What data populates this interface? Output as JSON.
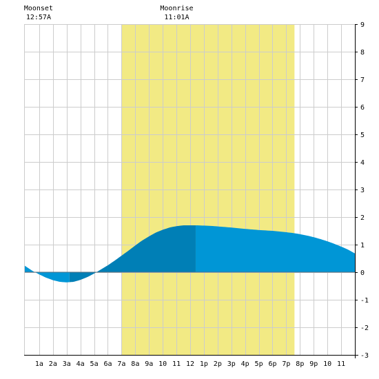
{
  "chart_data": {
    "type": "area",
    "title": "",
    "xlabel": "",
    "ylabel": "",
    "x_tick_labels": [
      "1a",
      "2a",
      "3a",
      "4a",
      "5a",
      "6a",
      "7a",
      "8a",
      "9a",
      "10",
      "11",
      "12",
      "1p",
      "2p",
      "3p",
      "4p",
      "5p",
      "6p",
      "7p",
      "8p",
      "9p",
      "10",
      "11"
    ],
    "y_tick_labels": [
      "9",
      "8",
      "7",
      "6",
      "5",
      "4",
      "3",
      "2",
      "1",
      "0",
      "-1",
      "-2",
      "-3"
    ],
    "xlim_hours": [
      -0.1,
      24.0
    ],
    "ylim": [
      -3,
      9
    ],
    "grid": true,
    "daylight_hours": [
      7.0,
      19.6
    ],
    "annotations": [
      {
        "label": "Moonset",
        "time": "12:57A",
        "hour": 0.95
      },
      {
        "label": "Moonrise",
        "time": "11:01A",
        "hour": 11.02
      }
    ],
    "tide_extremes": [
      {
        "hour": 3.2,
        "height": -0.37,
        "kind": "low"
      },
      {
        "hour": 12.4,
        "height": 1.7,
        "kind": "high"
      }
    ],
    "series": [
      {
        "x": [
          -0.1,
          0.5,
          1.0,
          1.5,
          2.0,
          2.5,
          3.0,
          3.5,
          4.0,
          4.5,
          5.0,
          5.5,
          6.0,
          6.5,
          7.0,
          7.5,
          8.0,
          8.5,
          9.0,
          9.5,
          10.0,
          10.5,
          11.0,
          11.5,
          12.0,
          12.5,
          13.0,
          13.5,
          14.0,
          15.0,
          16.0,
          17.0,
          18.0,
          19.0,
          19.5,
          20.0,
          20.5,
          21.0,
          21.5,
          22.0,
          22.5,
          23.0,
          23.5,
          24.0
        ],
        "y": [
          0.25,
          0.05,
          -0.08,
          -0.2,
          -0.29,
          -0.35,
          -0.37,
          -0.35,
          -0.28,
          -0.18,
          -0.05,
          0.1,
          0.25,
          0.42,
          0.6,
          0.78,
          0.97,
          1.15,
          1.3,
          1.44,
          1.54,
          1.62,
          1.67,
          1.7,
          1.7,
          1.7,
          1.69,
          1.68,
          1.66,
          1.62,
          1.57,
          1.53,
          1.5,
          1.45,
          1.42,
          1.38,
          1.33,
          1.27,
          1.2,
          1.12,
          1.03,
          0.93,
          0.82,
          0.68
        ]
      }
    ],
    "colors": {
      "daylight": "#f2ea84",
      "tide_light": "#0096d6",
      "tide_dark": "#007fb6",
      "grid": "#cccccc",
      "background": "#ffffff",
      "axis": "#000000"
    }
  }
}
